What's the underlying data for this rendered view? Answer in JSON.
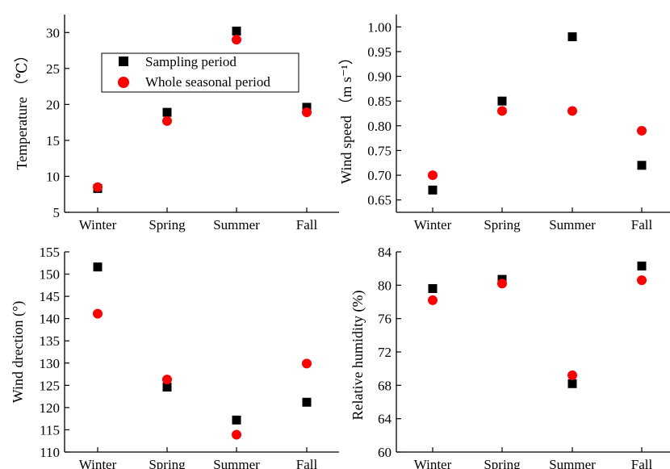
{
  "colors": {
    "sampling": "#000000",
    "seasonal": "#ff0000"
  },
  "legend": {
    "sampling_label": "Sampling period",
    "seasonal_label": "Whole seasonal period"
  },
  "chart_data": [
    {
      "type": "scatter",
      "categories": [
        "Winter",
        "Spring",
        "Summer",
        "Fall"
      ],
      "ylabel": "Temperature （℃）",
      "ylim": [
        5,
        32.5
      ],
      "yticks": [
        5,
        10,
        15,
        20,
        25,
        30
      ],
      "series": [
        {
          "name": "Sampling period",
          "marker": "square",
          "values": [
            8.3,
            18.9,
            30.2,
            19.6
          ]
        },
        {
          "name": "Whole seasonal period",
          "marker": "circle",
          "values": [
            8.5,
            17.7,
            29.0,
            18.9
          ]
        }
      ]
    },
    {
      "type": "scatter",
      "categories": [
        "Winter",
        "Spring",
        "Summer",
        "Fall"
      ],
      "ylabel": "Wind speed （m s⁻¹）",
      "ylim": [
        0.625,
        1.025
      ],
      "yticks": [
        0.65,
        0.7,
        0.75,
        0.8,
        0.85,
        0.9,
        0.95,
        1.0
      ],
      "ytick_labels": [
        "0.65",
        "0.70",
        "0.75",
        "0.80",
        "0.85",
        "0.90",
        "0.95",
        "1.00"
      ],
      "series": [
        {
          "name": "Sampling period",
          "marker": "square",
          "values": [
            0.67,
            0.85,
            0.98,
            0.72
          ]
        },
        {
          "name": "Whole seasonal period",
          "marker": "circle",
          "values": [
            0.7,
            0.83,
            0.83,
            0.79
          ]
        }
      ]
    },
    {
      "type": "scatter",
      "categories": [
        "Winter",
        "Spring",
        "Summer",
        "Fall"
      ],
      "ylabel": "Wind drection (°)",
      "ylim": [
        110,
        155
      ],
      "yticks": [
        110,
        115,
        120,
        125,
        130,
        135,
        140,
        145,
        150,
        155
      ],
      "series": [
        {
          "name": "Sampling period",
          "marker": "square",
          "values": [
            151.6,
            124.6,
            117.2,
            121.2
          ]
        },
        {
          "name": "Whole seasonal period",
          "marker": "circle",
          "values": [
            141.1,
            126.3,
            113.9,
            129.9
          ]
        }
      ]
    },
    {
      "type": "scatter",
      "categories": [
        "Winter",
        "Spring",
        "Summer",
        "Fall"
      ],
      "ylabel": "Relative humidity (%)",
      "ylim": [
        60,
        84
      ],
      "yticks": [
        60,
        64,
        68,
        72,
        76,
        80,
        84
      ],
      "series": [
        {
          "name": "Sampling period",
          "marker": "square",
          "values": [
            79.6,
            80.7,
            68.2,
            82.3
          ]
        },
        {
          "name": "Whole seasonal period",
          "marker": "circle",
          "values": [
            78.2,
            80.2,
            69.2,
            80.6
          ]
        }
      ]
    }
  ]
}
